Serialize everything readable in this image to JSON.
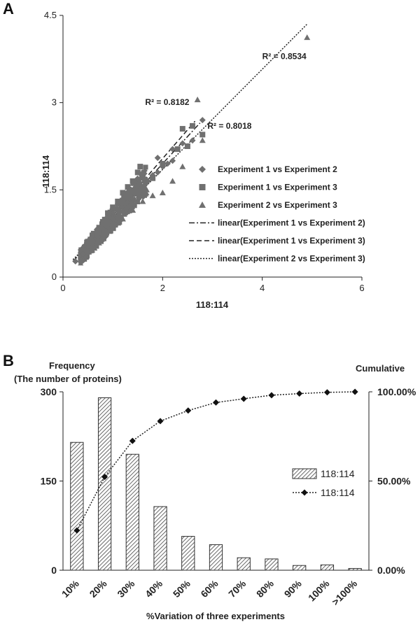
{
  "panel_a_label": "A",
  "panel_b_label": "B",
  "chart_data": [
    {
      "type": "scatter",
      "xlabel": "118:114",
      "ylabel": "118:114",
      "xlim": [
        0,
        6
      ],
      "ylim": [
        0,
        4.5
      ],
      "xticks": [
        0,
        2,
        4,
        6
      ],
      "xtick_labels": [
        "0",
        "2",
        "4",
        "6"
      ],
      "yticks": [
        0,
        1.5,
        3,
        4.5
      ],
      "ytick_labels": [
        "0",
        "1.5",
        "3",
        "4.5"
      ],
      "colors": {
        "marker": "#707070",
        "axis": "#222222"
      },
      "series": [
        {
          "name": "Experiment 1 vs Experiment 2",
          "marker": "diamond",
          "points": [
            [
              0.25,
              0.27
            ],
            [
              0.4,
              0.4
            ],
            [
              0.5,
              0.52
            ],
            [
              0.6,
              0.62
            ],
            [
              0.7,
              0.7
            ],
            [
              0.8,
              0.82
            ],
            [
              0.9,
              0.9
            ],
            [
              1.0,
              1.0
            ],
            [
              1.1,
              1.05
            ],
            [
              1.2,
              1.12
            ],
            [
              1.3,
              1.2
            ],
            [
              1.4,
              1.35
            ],
            [
              1.5,
              1.45
            ],
            [
              1.6,
              1.55
            ],
            [
              1.7,
              1.65
            ],
            [
              1.8,
              1.75
            ],
            [
              1.9,
              1.8
            ],
            [
              2.0,
              1.9
            ],
            [
              2.1,
              1.95
            ],
            [
              2.2,
              2.0
            ],
            [
              1.9,
              2.05
            ],
            [
              2.2,
              2.2
            ],
            [
              2.4,
              2.3
            ],
            [
              2.6,
              2.35
            ],
            [
              2.8,
              2.7
            ]
          ]
        },
        {
          "name": "Experiment 1 vs Experiment 3",
          "marker": "square",
          "points": [
            [
              0.5,
              0.6
            ],
            [
              0.7,
              0.8
            ],
            [
              0.8,
              0.95
            ],
            [
              0.9,
              1.1
            ],
            [
              1.0,
              1.2
            ],
            [
              1.1,
              1.3
            ],
            [
              1.2,
              1.45
            ],
            [
              1.3,
              1.55
            ],
            [
              1.4,
              1.65
            ],
            [
              1.5,
              1.8
            ],
            [
              1.55,
              1.9
            ],
            [
              1.8,
              1.7
            ],
            [
              2.0,
              1.95
            ],
            [
              2.3,
              2.2
            ],
            [
              2.5,
              2.25
            ],
            [
              2.6,
              2.6
            ],
            [
              2.4,
              2.55
            ],
            [
              2.8,
              2.45
            ]
          ]
        },
        {
          "name": "Experiment 2 vs Experiment 3",
          "marker": "triangle",
          "points": [
            [
              0.35,
              0.3
            ],
            [
              0.5,
              0.45
            ],
            [
              0.6,
              0.55
            ],
            [
              0.8,
              0.7
            ],
            [
              1.0,
              0.85
            ],
            [
              1.2,
              1.0
            ],
            [
              1.4,
              1.15
            ],
            [
              1.6,
              1.3
            ],
            [
              1.8,
              1.4
            ],
            [
              2.0,
              1.45
            ],
            [
              2.2,
              1.65
            ],
            [
              2.4,
              1.9
            ],
            [
              2.7,
              3.05
            ],
            [
              2.8,
              2.35
            ],
            [
              4.9,
              4.12
            ]
          ]
        }
      ],
      "trendlines": [
        {
          "name": "linear(Experiment 1 vs Experiment 2)",
          "style": "dashdot",
          "from": [
            0.2,
            0.27
          ],
          "to": [
            2.75,
            2.65
          ]
        },
        {
          "name": "linear(Experiment 1 vs Experiment 3)",
          "style": "dashed",
          "from": [
            0.2,
            0.26
          ],
          "to": [
            2.65,
            2.68
          ]
        },
        {
          "name": "linear(Experiment 2 vs Experiment 3)",
          "style": "dotted",
          "from": [
            0.2,
            0.3
          ],
          "to": [
            4.9,
            4.35
          ]
        }
      ],
      "legend": [
        {
          "label": "Experiment 1 vs Experiment 2",
          "kind": "diamond"
        },
        {
          "label": "Experiment 1 vs Experiment 3",
          "kind": "square"
        },
        {
          "label": "Experiment 2 vs Experiment 3",
          "kind": "triangle"
        },
        {
          "label": "linear(Experiment 1 vs Experiment 2)",
          "kind": "dashdot"
        },
        {
          "label": "linear(Experiment 1 vs Experiment 3)",
          "kind": "dashed"
        },
        {
          "label": "linear(Experiment 2 vs Experiment 3)",
          "kind": "dotted"
        }
      ],
      "annotations": [
        {
          "text": "R² = 0.8534",
          "x": 4.0,
          "y": 3.75
        },
        {
          "text": "R² = 0.8182",
          "x": 1.65,
          "y": 2.96
        },
        {
          "text": "R² = 0.8018",
          "x": 2.9,
          "y": 2.55
        }
      ],
      "legend_position": "right"
    },
    {
      "type": "bar+line",
      "title_left": "Frequency",
      "title_left_sub": "(The number of proteins)",
      "title_right": "Cumulative",
      "xlabel": "%Variation of three experiments",
      "categories": [
        "10%",
        "20%",
        "30%",
        "40%",
        "50%",
        "60%",
        "70%",
        "80%",
        "90%",
        "100%",
        ">100%"
      ],
      "bar_series": {
        "name": "118:114",
        "values": [
          215,
          290,
          195,
          107,
          57,
          43,
          21,
          19,
          8,
          9,
          3
        ]
      },
      "line_series": {
        "name": "118:114",
        "values": [
          22.3,
          52.3,
          72.5,
          83.6,
          89.5,
          94.0,
          96.1,
          98.1,
          99.0,
          99.7,
          100.0
        ]
      },
      "ylim_left": [
        0,
        300
      ],
      "yticks_left": [
        "0",
        "150",
        "300"
      ],
      "ylim_right": [
        0,
        100
      ],
      "yticks_right": [
        "0.00%",
        "50.00%",
        "100.00%"
      ],
      "legend_position": "right"
    }
  ]
}
